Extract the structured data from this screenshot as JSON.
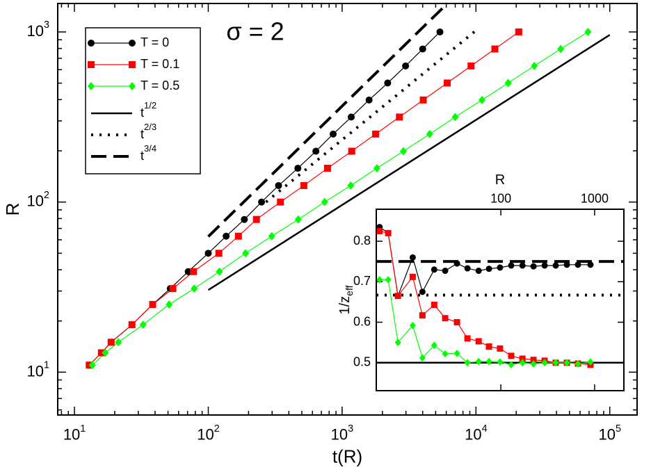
{
  "chart_data": [
    {
      "type": "line",
      "xlog": true,
      "ylog": true,
      "annotation": "σ = 2",
      "xlabel": "t(R)",
      "ylabel": "R",
      "xlim": [
        7.5,
        160000
      ],
      "ylim": [
        5.6,
        1470
      ],
      "xticks": [
        {
          "value": 10,
          "label": "10",
          "sup": "1"
        },
        {
          "value": 100,
          "label": "10",
          "sup": "2"
        },
        {
          "value": 1000,
          "label": "10",
          "sup": "3"
        },
        {
          "value": 10000,
          "label": "10",
          "sup": "4"
        },
        {
          "value": 100000,
          "label": "10",
          "sup": "5"
        }
      ],
      "yticks": [
        {
          "value": 10,
          "label": "10",
          "sup": "1"
        },
        {
          "value": 100,
          "label": "10",
          "sup": "2"
        },
        {
          "value": 1000,
          "label": "10",
          "sup": "3"
        }
      ],
      "xminor": [
        8,
        9,
        20,
        30,
        40,
        50,
        60,
        70,
        80,
        90,
        200,
        300,
        400,
        500,
        600,
        700,
        800,
        900,
        2000,
        3000,
        4000,
        5000,
        6000,
        7000,
        8000,
        9000,
        20000,
        30000,
        40000,
        50000,
        60000,
        70000,
        80000,
        90000
      ],
      "yminor": [
        6,
        7,
        8,
        9,
        20,
        30,
        40,
        50,
        60,
        70,
        80,
        90,
        200,
        300,
        400,
        500,
        600,
        700,
        800,
        900
      ],
      "series": [
        {
          "name": "T = 0",
          "color": "#000000",
          "marker": "circle",
          "x": [
            12.9,
            15.9,
            18.8,
            26.9,
            38.4,
            52,
            70.8,
            100,
            136,
            186,
            250,
            335,
            467,
            637,
            857,
            1170,
            1590,
            2190,
            2980,
            4000,
            5380
          ],
          "values": [
            11,
            13,
            15,
            19,
            25,
            31,
            39,
            50,
            63,
            79,
            100,
            125,
            158,
            199,
            251,
            316,
            398,
            501,
            631,
            794,
            1000
          ]
        },
        {
          "name": "T = 0.1",
          "color": "#ff0000",
          "marker": "square",
          "x": [
            12.9,
            15.9,
            18.8,
            26.9,
            38.4,
            54.4,
            77.5,
            120,
            168,
            229,
            346,
            518,
            778,
            1180,
            1780,
            2680,
            4040,
            6100,
            9190,
            13850,
            20880
          ],
          "values": [
            11,
            13,
            15,
            19,
            25,
            31,
            39,
            50,
            63,
            79,
            100,
            125,
            158,
            199,
            251,
            316,
            398,
            501,
            631,
            794,
            1000
          ]
        },
        {
          "name": "T = 0.5",
          "color": "#00ff00",
          "marker": "diamond",
          "x": [
            13.6,
            17.0,
            21.3,
            32.6,
            51,
            78.5,
            121,
            190,
            298,
            470,
            740,
            1160,
            1820,
            2870,
            4510,
            7000,
            11100,
            17400,
            27300,
            43000,
            68700
          ],
          "values": [
            11,
            13,
            15,
            19,
            25,
            31,
            39,
            50,
            63,
            79,
            100,
            125,
            158,
            199,
            251,
            316,
            398,
            501,
            631,
            794,
            1000
          ]
        },
        {
          "name": "t",
          "name_sup": "1/2",
          "color": "#000000",
          "dash": "solid",
          "x": [
            100,
            100000
          ],
          "values": [
            30.4,
            961
          ]
        },
        {
          "name": "t",
          "name_sup": "2/3",
          "color": "#000000",
          "dash": "dotted",
          "x": [
            270,
            9860
          ],
          "values": [
            100,
            1010
          ]
        },
        {
          "name": "t",
          "name_sup": "3/4",
          "color": "#000000",
          "dash": "dashed",
          "x": [
            100,
            6120
          ],
          "values": [
            62.7,
            1470
          ]
        }
      ]
    },
    {
      "type": "line",
      "xlog": true,
      "ylog": false,
      "xaxis_position": "top",
      "xlabel": "R",
      "ylabel": "1/z",
      "ylabel_sub": "eff",
      "xlim": [
        4.7,
        2050
      ],
      "ylim": [
        0.431,
        0.879
      ],
      "xticks": [
        100,
        1000
      ],
      "yticks": [
        0.5,
        0.6,
        0.7,
        0.8
      ],
      "hlines": [
        {
          "value": 0.75,
          "dash": "dashed"
        },
        {
          "value": 0.667,
          "dash": "dotted"
        },
        {
          "value": 0.5,
          "dash": "solid"
        }
      ],
      "series": [
        {
          "color": "#000000",
          "marker": "circle",
          "x": [
            5.1,
            6.3,
            8.0,
            11.5,
            14.6,
            19.5,
            25.5,
            34.1,
            44.1,
            58.0,
            74.8,
            98,
            129,
            170,
            223,
            293,
            385,
            506,
            664,
            903
          ],
          "values": [
            0.835,
            0.82,
            0.665,
            0.76,
            0.675,
            0.73,
            0.727,
            0.745,
            0.733,
            0.727,
            0.732,
            0.735,
            0.74,
            0.74,
            0.738,
            0.74,
            0.74,
            0.742,
            0.742,
            0.742
          ]
        },
        {
          "color": "#ff0000",
          "marker": "square",
          "x": [
            5.1,
            6.3,
            8.0,
            11.5,
            14.6,
            19.5,
            25.5,
            34.1,
            44.1,
            58.0,
            74.8,
            98,
            129,
            170,
            223,
            293,
            385,
            506,
            664,
            903
          ],
          "values": [
            0.825,
            0.82,
            0.665,
            0.712,
            0.617,
            0.643,
            0.61,
            0.6,
            0.56,
            0.553,
            0.54,
            0.535,
            0.517,
            0.51,
            0.507,
            0.505,
            0.5,
            0.5,
            0.498,
            0.495
          ]
        },
        {
          "color": "#00ff00",
          "marker": "diamond",
          "x": [
            5.1,
            6.3,
            8.0,
            11.5,
            14.6,
            19.5,
            25.5,
            34.1,
            44.1,
            58.0,
            74.8,
            98,
            129,
            170,
            223,
            293,
            385,
            506,
            664,
            903
          ],
          "values": [
            0.705,
            0.705,
            0.55,
            0.592,
            0.512,
            0.543,
            0.522,
            0.523,
            0.5,
            0.503,
            0.503,
            0.502,
            0.495,
            0.5,
            0.497,
            0.5,
            0.5,
            0.5,
            0.497,
            0.502
          ]
        }
      ]
    }
  ]
}
